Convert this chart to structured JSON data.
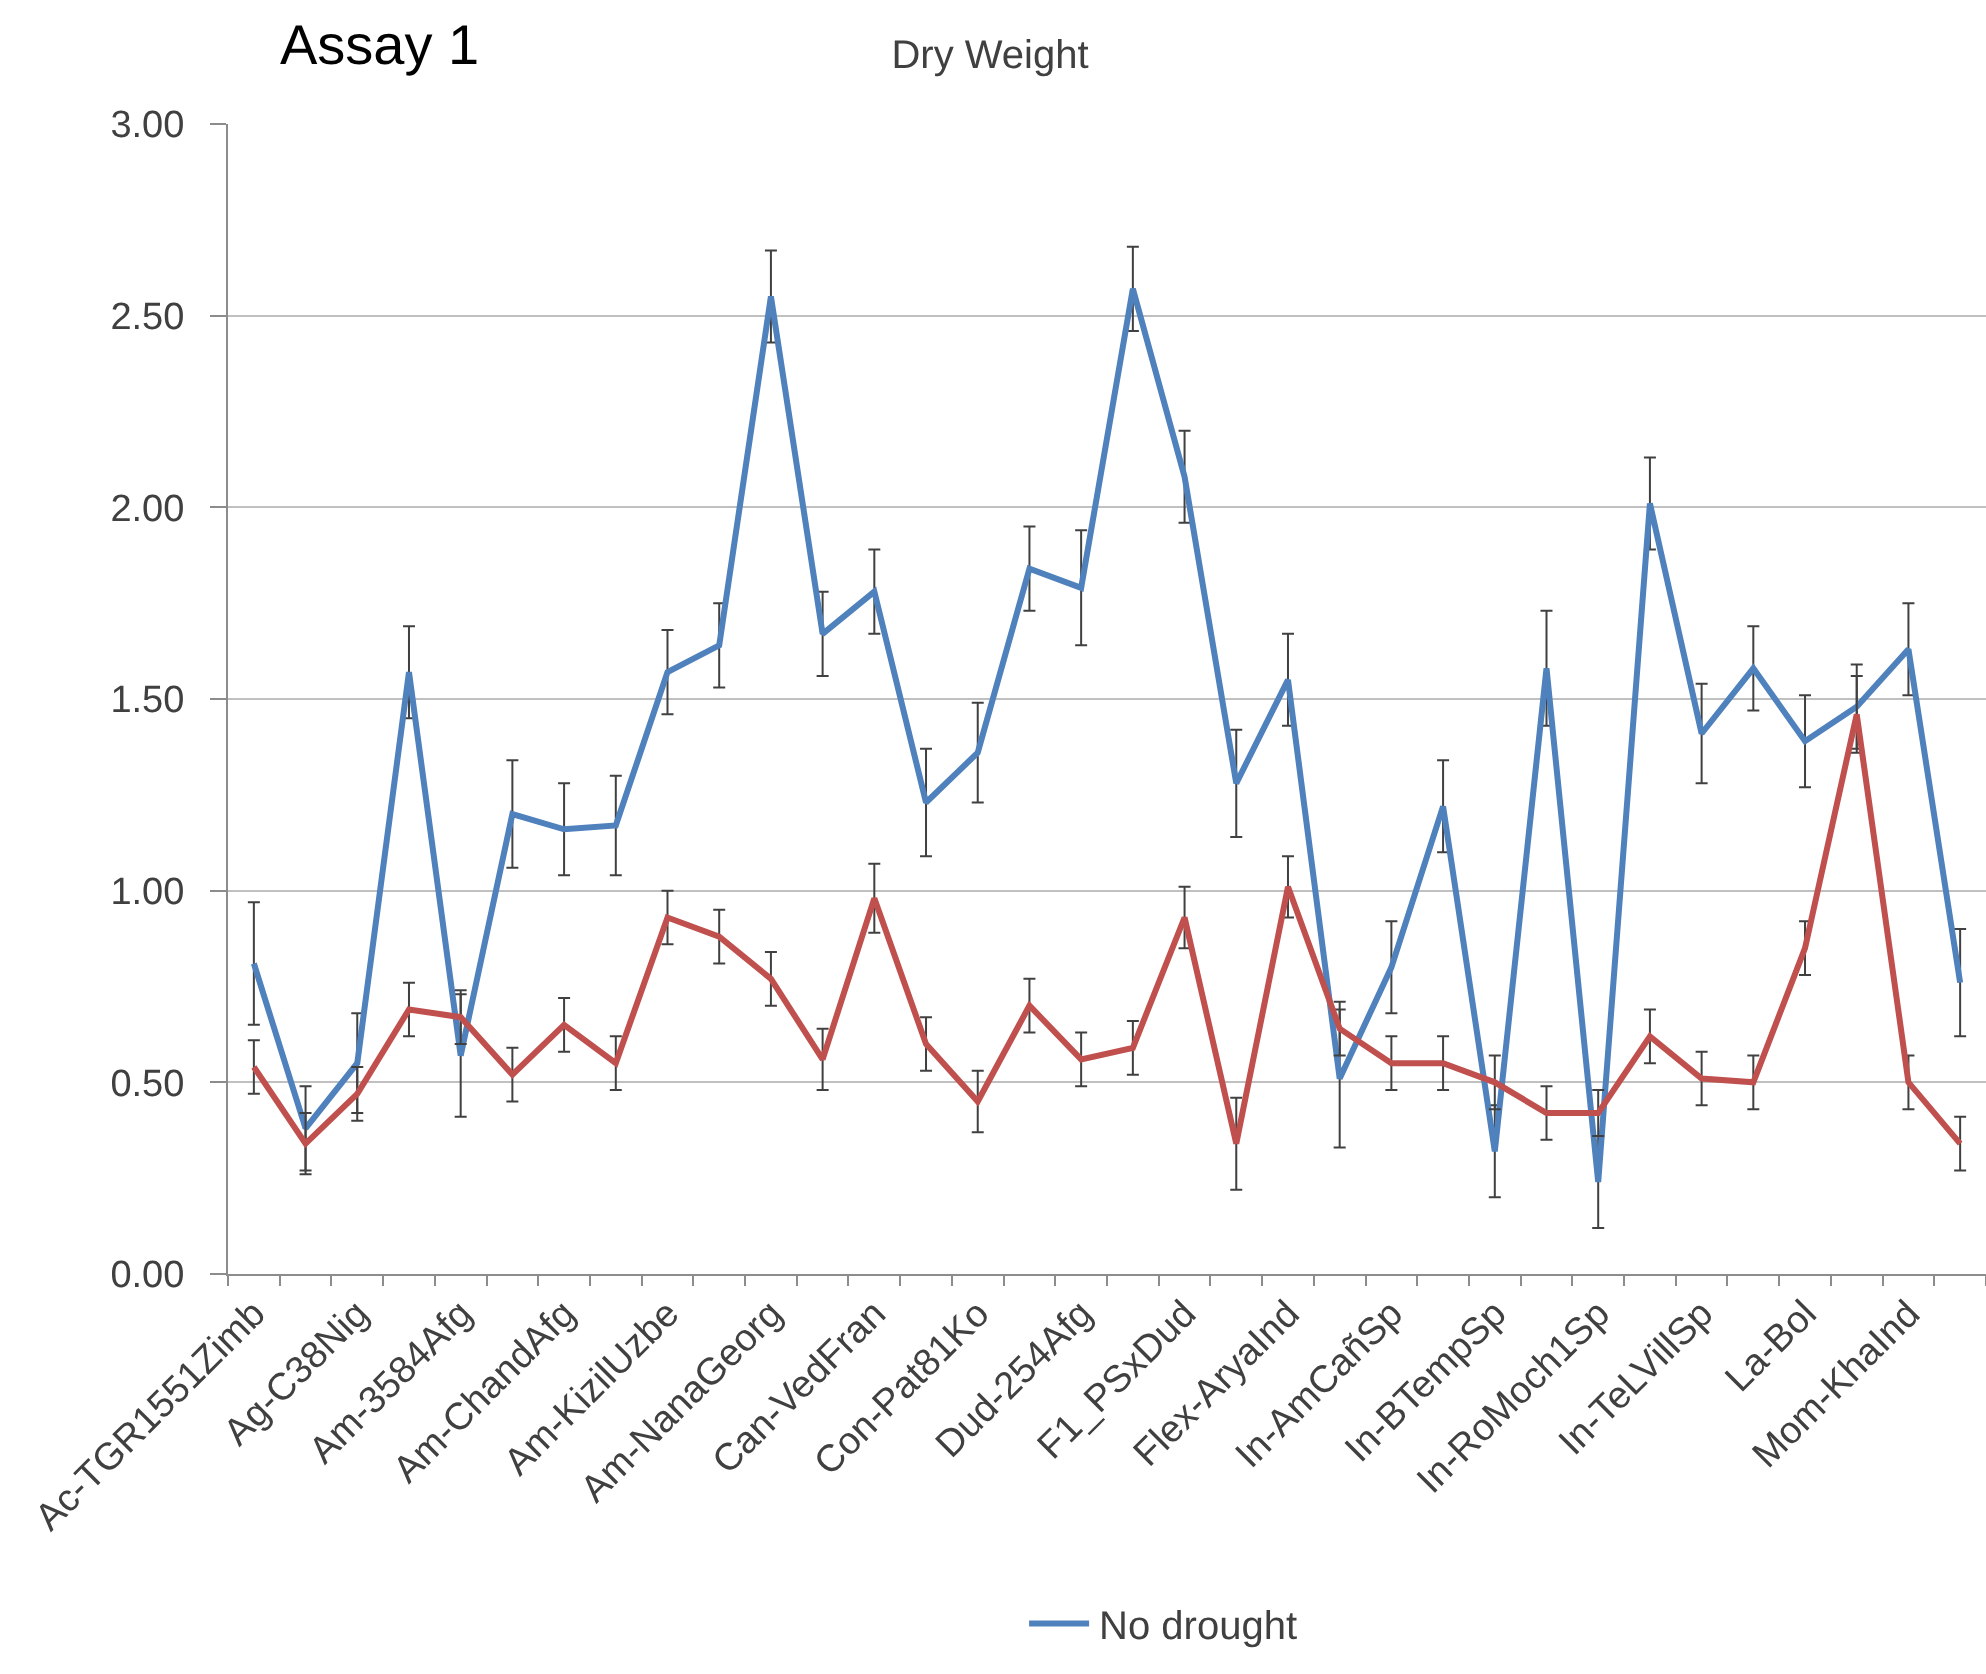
{
  "chart_data": {
    "type": "line",
    "title": "Dry Weight",
    "annotations": [
      "Assay 1"
    ],
    "categories": [
      "Ac-TGR1551Zimb",
      null,
      "Ag-C38Nig",
      null,
      "Am-3584Afg",
      null,
      "Am-ChandAfg",
      null,
      "Am-KizilUzbe",
      null,
      "Am-NanaGeorg",
      null,
      "Can-VedFran",
      null,
      "Con-Pat81Ko",
      null,
      "Dud-254Afg",
      null,
      "F1_PSxDud",
      null,
      "Flex-AryaInd",
      null,
      "In-AmCañSp",
      null,
      "In-BTempSp",
      null,
      "In-RoMoch1Sp",
      null,
      "In-TeLVillSp",
      null,
      "La-Bol",
      null,
      "Mom-KhaInd",
      null
    ],
    "series": [
      {
        "name": "No drought",
        "color": "#4f81bd",
        "values": [
          0.81,
          0.38,
          0.55,
          1.57,
          0.57,
          1.2,
          1.16,
          1.17,
          1.57,
          1.64,
          2.55,
          1.67,
          1.78,
          1.23,
          1.36,
          1.84,
          1.79,
          2.57,
          2.08,
          1.28,
          1.55,
          0.51,
          0.8,
          1.22,
          0.32,
          1.58,
          0.24,
          2.01,
          1.41,
          1.58,
          1.39,
          1.48,
          1.63,
          0.76
        ],
        "errors": [
          0.16,
          0.11,
          0.13,
          0.12,
          0.16,
          0.14,
          0.12,
          0.13,
          0.11,
          0.11,
          0.12,
          0.11,
          0.11,
          0.14,
          0.13,
          0.11,
          0.15,
          0.11,
          0.12,
          0.14,
          0.12,
          0.18,
          0.12,
          0.12,
          0.12,
          0.15,
          0.12,
          0.12,
          0.13,
          0.11,
          0.12,
          0.11,
          0.12,
          0.14
        ]
      },
      {
        "color": "#c0504d",
        "values": [
          0.54,
          0.34,
          0.47,
          0.69,
          0.67,
          0.52,
          0.65,
          0.55,
          0.93,
          0.88,
          0.77,
          0.56,
          0.98,
          0.6,
          0.45,
          0.7,
          0.56,
          0.59,
          0.93,
          0.34,
          1.01,
          0.64,
          0.55,
          0.55,
          0.5,
          0.42,
          0.42,
          0.62,
          0.51,
          0.5,
          0.85,
          1.46,
          0.5,
          0.34
        ],
        "errors": [
          0.07,
          0.08,
          0.07,
          0.07,
          0.07,
          0.07,
          0.07,
          0.07,
          0.07,
          0.07,
          0.07,
          0.08,
          0.09,
          0.07,
          0.08,
          0.07,
          0.07,
          0.07,
          0.08,
          0.12,
          0.08,
          0.07,
          0.07,
          0.07,
          0.07,
          0.07,
          0.06,
          0.07,
          0.07,
          0.07,
          0.07,
          0.1,
          0.07,
          0.07
        ]
      }
    ],
    "ylim": [
      0,
      3
    ],
    "yticks": [
      {
        "value": 0,
        "label": "0.00"
      },
      {
        "value": 0.5,
        "label": "0.50"
      },
      {
        "value": 1,
        "label": "1.00"
      },
      {
        "value": 1.5,
        "label": "1.50"
      },
      {
        "value": 2,
        "label": "2.00"
      },
      {
        "value": 2.5,
        "label": "2.50"
      },
      {
        "value": 3,
        "label": "3.00"
      }
    ],
    "grid": "y",
    "legend": "bottom",
    "line_style": "solid"
  }
}
